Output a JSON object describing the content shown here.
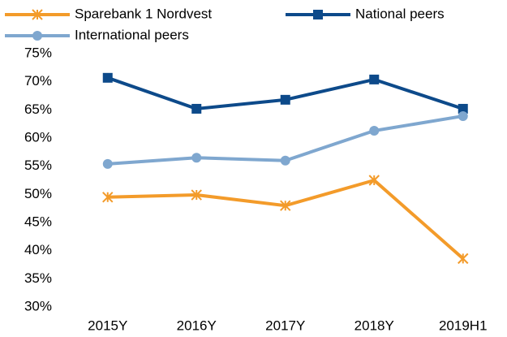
{
  "chart_data": {
    "type": "line",
    "categories": [
      "2015Y",
      "2016Y",
      "2017Y",
      "2018Y",
      "2019H1"
    ],
    "series": [
      {
        "name": "Sparebank 1 Nordvest",
        "color": "#f39b2a",
        "marker": "x",
        "values": [
          49.5,
          49.9,
          48.0,
          52.5,
          38.6
        ]
      },
      {
        "name": "National peers",
        "color": "#0d4a8a",
        "marker": "square",
        "values": [
          70.7,
          65.2,
          66.8,
          70.4,
          65.2
        ]
      },
      {
        "name": "International peers",
        "color": "#7fa7cf",
        "marker": "circle",
        "values": [
          55.4,
          56.5,
          56.0,
          61.3,
          63.9
        ]
      }
    ],
    "ylim": [
      30,
      75
    ],
    "yticks": [
      {
        "value": 30,
        "label": "30%"
      },
      {
        "value": 35,
        "label": "35%"
      },
      {
        "value": 40,
        "label": "40%"
      },
      {
        "value": 45,
        "label": "45%"
      },
      {
        "value": 50,
        "label": "50%"
      },
      {
        "value": 55,
        "label": "55%"
      },
      {
        "value": 60,
        "label": "60%"
      },
      {
        "value": 65,
        "label": "65%"
      },
      {
        "value": 70,
        "label": "70%"
      },
      {
        "value": 75,
        "label": "75%"
      }
    ],
    "grid": false
  }
}
